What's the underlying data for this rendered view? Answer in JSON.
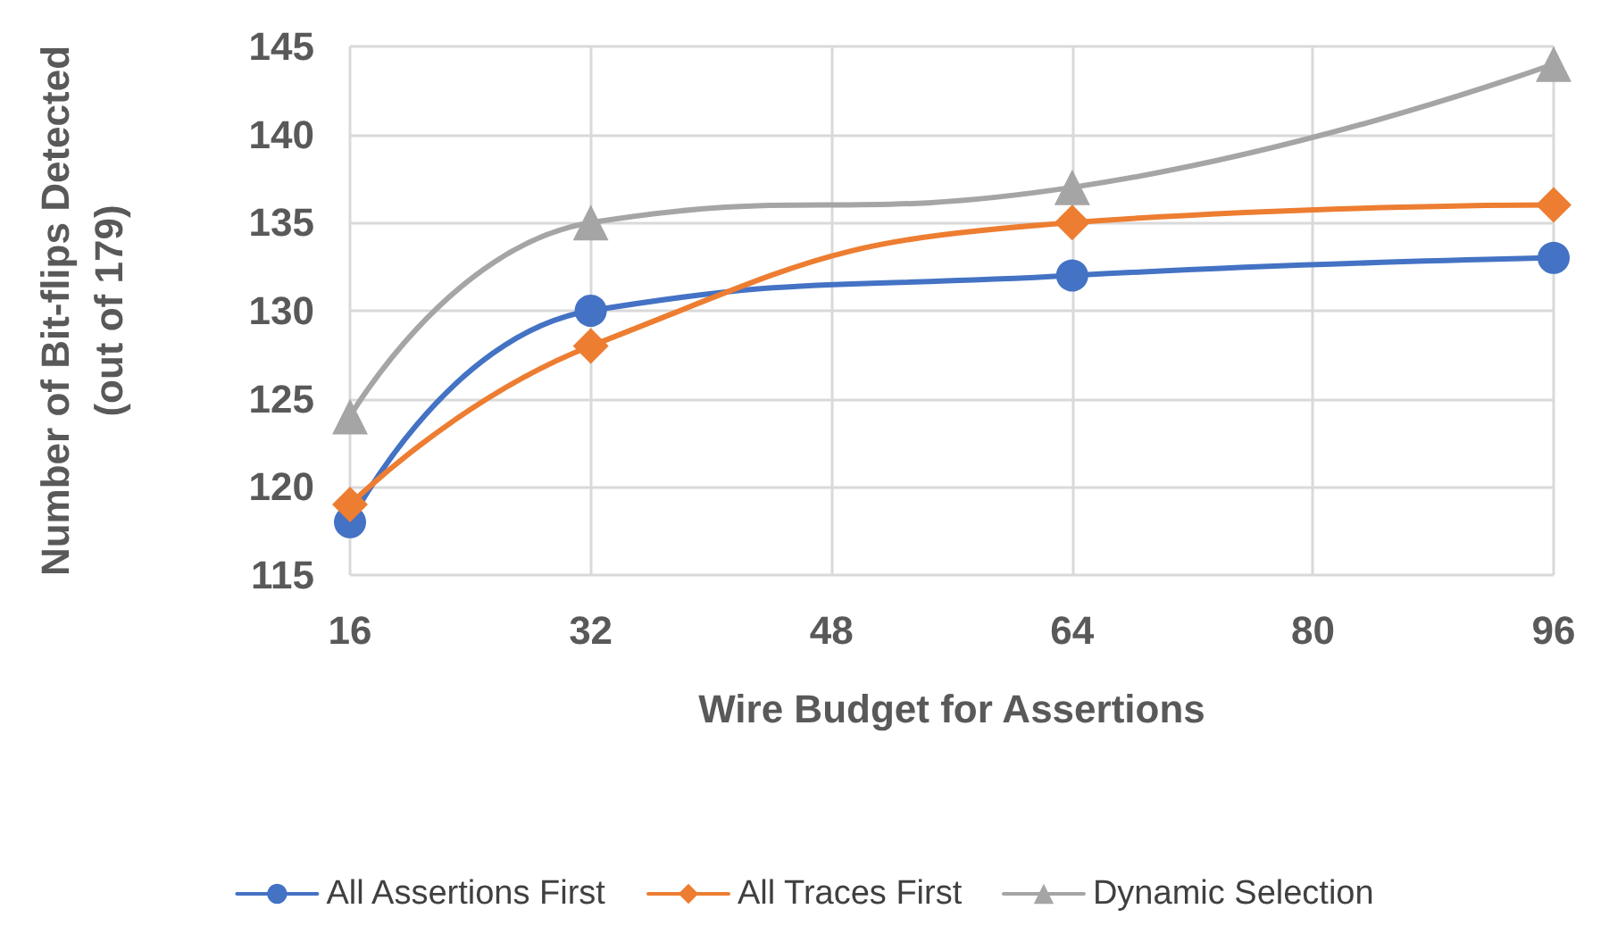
{
  "chart_data": {
    "type": "line",
    "xlabel": "Wire Budget for Assertions",
    "ylabel": "Number of Bit-flips Detected\n(out of 179)",
    "x": [
      16,
      32,
      64,
      96
    ],
    "series": [
      {
        "name": "All Assertions First",
        "color": "#4472c4",
        "marker": "circle",
        "values": [
          118,
          130,
          132,
          133
        ]
      },
      {
        "name": "All Traces First",
        "color": "#ed7d31",
        "marker": "diamond",
        "values": [
          119,
          128,
          135,
          136
        ]
      },
      {
        "name": "Dynamic Selection",
        "color": "#a5a5a5",
        "marker": "triangle",
        "values": [
          124,
          135,
          137,
          144
        ]
      }
    ],
    "xlim": [
      16,
      96
    ],
    "xticks": [
      16,
      32,
      48,
      64,
      80,
      96
    ],
    "ylim": [
      115,
      145
    ],
    "yticks": [
      115,
      120,
      125,
      130,
      135,
      140,
      145
    ],
    "grid": true,
    "legend": "bottom",
    "line_style": "solid"
  }
}
